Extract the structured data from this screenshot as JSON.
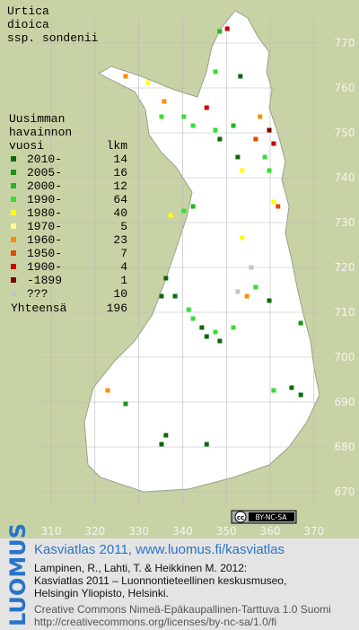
{
  "map": {
    "species": [
      "Urtica",
      "dioica",
      "ssp. sondenii"
    ],
    "legend": {
      "heading": [
        "Uusimman",
        "havainnon",
        "vuosi",
        "lkm"
      ],
      "entries": [
        {
          "label": "2010-",
          "count": 14,
          "color": "#0b6a0b"
        },
        {
          "label": "2005-",
          "count": 16,
          "color": "#199419"
        },
        {
          "label": "2000-",
          "count": 12,
          "color": "#22b622"
        },
        {
          "label": "1990-",
          "count": 64,
          "color": "#33e033"
        },
        {
          "label": "1980-",
          "count": 40,
          "color": "#ffff00"
        },
        {
          "label": "1970-",
          "count": 5,
          "color": "#ffff90"
        },
        {
          "label": "1960-",
          "count": 23,
          "color": "#ff8c00"
        },
        {
          "label": "1950-",
          "count": 7,
          "color": "#e04a00"
        },
        {
          "label": "1900-",
          "count": 4,
          "color": "#cc0000"
        },
        {
          "label": "-1899",
          "count": 1,
          "color": "#800000"
        },
        {
          "label": "???",
          "count": 10,
          "color": "#c4c4c4"
        }
      ],
      "total_label": "Yhteensä",
      "total": 196
    },
    "xticks": [
      310,
      320,
      330,
      340,
      350,
      360,
      370
    ],
    "yticks": [
      670,
      680,
      690,
      700,
      710,
      720,
      730,
      740,
      750,
      760,
      770
    ],
    "observations": [
      {
        "e": 350.2,
        "n": 773.2,
        "period": 8
      },
      {
        "e": 348.5,
        "n": 772.6,
        "period": 2
      },
      {
        "e": 353.2,
        "n": 762.6,
        "period": 0
      },
      {
        "e": 347.5,
        "n": 763.6,
        "period": 3
      },
      {
        "e": 327.0,
        "n": 762.6,
        "period": 6
      },
      {
        "e": 332.1,
        "n": 761.2,
        "period": 4
      },
      {
        "e": 335.8,
        "n": 757.0,
        "period": 6
      },
      {
        "e": 335.2,
        "n": 753.6,
        "period": 3
      },
      {
        "e": 340.3,
        "n": 753.6,
        "period": 3
      },
      {
        "e": 342.4,
        "n": 751.6,
        "period": 3
      },
      {
        "e": 345.5,
        "n": 755.6,
        "period": 8
      },
      {
        "e": 347.5,
        "n": 750.6,
        "period": 3
      },
      {
        "e": 348.5,
        "n": 748.6,
        "period": 0
      },
      {
        "e": 351.6,
        "n": 751.6,
        "period": 2
      },
      {
        "e": 357.7,
        "n": 753.6,
        "period": 6
      },
      {
        "e": 359.8,
        "n": 750.6,
        "period": 9
      },
      {
        "e": 360.8,
        "n": 747.6,
        "period": 8
      },
      {
        "e": 356.7,
        "n": 748.6,
        "period": 7
      },
      {
        "e": 358.8,
        "n": 744.6,
        "period": 3
      },
      {
        "e": 352.6,
        "n": 744.6,
        "period": 0
      },
      {
        "e": 353.6,
        "n": 741.6,
        "period": 4
      },
      {
        "e": 359.8,
        "n": 741.6,
        "period": 3
      },
      {
        "e": 360.8,
        "n": 734.6,
        "period": 4
      },
      {
        "e": 361.8,
        "n": 733.6,
        "period": 7
      },
      {
        "e": 337.3,
        "n": 731.6,
        "period": 4
      },
      {
        "e": 340.3,
        "n": 732.6,
        "period": 3
      },
      {
        "e": 342.4,
        "n": 733.6,
        "period": 2
      },
      {
        "e": 353.6,
        "n": 726.6,
        "period": 4
      },
      {
        "e": 355.7,
        "n": 720.0,
        "period": 10
      },
      {
        "e": 356.7,
        "n": 715.6,
        "period": 3
      },
      {
        "e": 352.6,
        "n": 714.6,
        "period": 10
      },
      {
        "e": 354.7,
        "n": 713.6,
        "period": 6
      },
      {
        "e": 336.2,
        "n": 717.6,
        "period": 0
      },
      {
        "e": 335.2,
        "n": 713.6,
        "period": 0
      },
      {
        "e": 338.3,
        "n": 713.6,
        "period": 0
      },
      {
        "e": 341.4,
        "n": 710.6,
        "period": 3
      },
      {
        "e": 342.4,
        "n": 708.6,
        "period": 3
      },
      {
        "e": 344.4,
        "n": 706.6,
        "period": 0
      },
      {
        "e": 345.5,
        "n": 704.6,
        "period": 0
      },
      {
        "e": 347.5,
        "n": 705.6,
        "period": 3
      },
      {
        "e": 348.5,
        "n": 703.6,
        "period": 0
      },
      {
        "e": 351.6,
        "n": 706.6,
        "period": 3
      },
      {
        "e": 359.8,
        "n": 712.6,
        "period": 0
      },
      {
        "e": 367.0,
        "n": 707.6,
        "period": 1
      },
      {
        "e": 322.9,
        "n": 692.6,
        "period": 6
      },
      {
        "e": 360.8,
        "n": 692.6,
        "period": 3
      },
      {
        "e": 364.9,
        "n": 693.2,
        "period": 0
      },
      {
        "e": 367.0,
        "n": 691.6,
        "period": 0
      },
      {
        "e": 336.2,
        "n": 682.6,
        "period": 0
      },
      {
        "e": 335.2,
        "n": 680.6,
        "period": 0
      },
      {
        "e": 345.5,
        "n": 680.6,
        "period": 0
      },
      {
        "e": 327.0,
        "n": 689.6,
        "period": 1
      }
    ],
    "badge": [
      "cc",
      "BY-NC-SA"
    ],
    "footer": {
      "brand": "LUOMUS",
      "headline": "Kasviatlas 2011, www.luomus.fi/kasviatlas",
      "citation": [
        "Lampinen, R., Lahti, T. & Heikkinen M. 2012:",
        "Kasviatlas 2011 – Luonnontieteellinen keskusmuseo,",
        "Helsingin Yliopisto, Helsinki."
      ],
      "license": [
        "Creative Commons Nimeä-Epäkaupallinen-Tarttuva 1.0 Suomi",
        "http://creativecommons.org/licenses/by-nc-sa/1.0/fi"
      ]
    }
  }
}
